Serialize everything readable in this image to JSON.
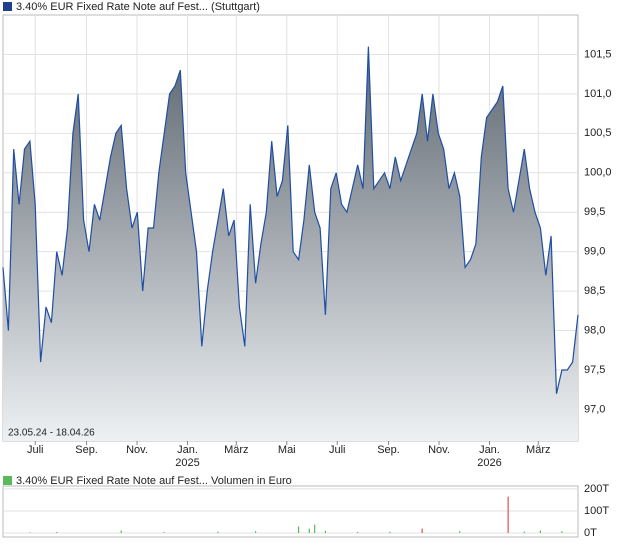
{
  "chart_data": [
    {
      "type": "line",
      "title": "3.40% EUR Fixed Rate Note auf Fest... (Stuttgart)",
      "date_range": "23.05.24 - 18.04.26",
      "xlim": [
        "2024-05-23",
        "2026-04-18"
      ],
      "xticks": [
        {
          "value": "2024-07-01",
          "label": "Juli"
        },
        {
          "value": "2024-09-01",
          "label": "Sep."
        },
        {
          "value": "2024-11-01",
          "label": "Nov."
        },
        {
          "value": "2025-01-01",
          "label": "Jan.",
          "year": "2025"
        },
        {
          "value": "2025-03-01",
          "label": "März"
        },
        {
          "value": "2025-05-01",
          "label": "Mai"
        },
        {
          "value": "2025-07-01",
          "label": "Juli"
        },
        {
          "value": "2025-09-01",
          "label": "Sep."
        },
        {
          "value": "2025-11-01",
          "label": "Nov."
        },
        {
          "value": "2026-01-01",
          "label": "Jan.",
          "year": "2026"
        },
        {
          "value": "2026-03-01",
          "label": "März"
        }
      ],
      "ylim": [
        96.6,
        102.0
      ],
      "yticks": [
        {
          "value": 97.0,
          "label": "97,0"
        },
        {
          "value": 97.5,
          "label": "97,5"
        },
        {
          "value": 98.0,
          "label": "98,0"
        },
        {
          "value": 98.5,
          "label": "98,5"
        },
        {
          "value": 99.0,
          "label": "99,0"
        },
        {
          "value": 99.5,
          "label": "99,5"
        },
        {
          "value": 100.0,
          "label": "100,0"
        },
        {
          "value": 100.5,
          "label": "100,5"
        },
        {
          "value": 101.0,
          "label": "101,0"
        },
        {
          "value": 101.5,
          "label": "101,5"
        }
      ],
      "grid": true,
      "color": "#1f4ea3",
      "fill_top": "#5d6670",
      "fill_bottom": "#eef1f3",
      "legend_color": "#1f3f8f",
      "values": [
        98.8,
        98.0,
        100.3,
        99.6,
        100.3,
        100.4,
        99.6,
        97.6,
        98.3,
        98.1,
        99.0,
        98.7,
        99.3,
        100.5,
        101.0,
        99.4,
        99.0,
        99.6,
        99.4,
        99.8,
        100.2,
        100.5,
        100.6,
        99.8,
        99.3,
        99.5,
        98.5,
        99.3,
        99.3,
        100.0,
        100.5,
        101.0,
        101.1,
        101.3,
        100.0,
        99.5,
        99.0,
        97.8,
        98.5,
        99.0,
        99.4,
        99.8,
        99.2,
        99.4,
        98.3,
        97.8,
        99.6,
        98.6,
        99.1,
        99.5,
        100.4,
        99.7,
        99.9,
        100.6,
        99.0,
        98.9,
        99.4,
        100.1,
        99.5,
        99.3,
        98.2,
        99.8,
        100.0,
        99.6,
        99.5,
        99.8,
        100.1,
        99.8,
        101.6,
        99.8,
        99.9,
        100.0,
        99.8,
        100.2,
        99.9,
        100.1,
        100.3,
        100.5,
        101.0,
        100.4,
        101.0,
        100.5,
        100.3,
        99.8,
        100.0,
        99.7,
        98.8,
        98.9,
        99.1,
        100.2,
        100.7,
        100.8,
        100.9,
        101.1,
        99.8,
        99.5,
        99.9,
        100.3,
        99.8,
        99.5,
        99.3,
        98.7,
        99.2,
        97.2,
        97.5,
        97.5,
        97.6,
        98.2
      ]
    },
    {
      "type": "bar",
      "title": "3.40% EUR Fixed Rate Note auf Fest... Volumen in Euro",
      "legend_color": "#5cb85c",
      "ylim": [
        -18000,
        213000
      ],
      "yticks": [
        {
          "value": 0,
          "label": "0T"
        },
        {
          "value": 100000,
          "label": "100T"
        },
        {
          "value": 200000,
          "label": "200T"
        }
      ],
      "grid": true,
      "values": [
        0,
        0,
        0,
        0,
        0,
        3000,
        0,
        0,
        0,
        0,
        5000,
        0,
        0,
        0,
        0,
        0,
        0,
        0,
        0,
        0,
        0,
        0,
        12000,
        0,
        0,
        0,
        0,
        0,
        0,
        0,
        4000,
        0,
        0,
        0,
        0,
        0,
        0,
        0,
        0,
        0,
        6000,
        0,
        0,
        0,
        0,
        0,
        0,
        8000,
        0,
        0,
        0,
        0,
        0,
        0,
        0,
        30000,
        0,
        20000,
        38000,
        0,
        10000,
        0,
        0,
        0,
        0,
        0,
        5000,
        0,
        0,
        0,
        0,
        0,
        6000,
        0,
        0,
        0,
        0,
        0,
        20000,
        0,
        0,
        0,
        0,
        0,
        0,
        8000,
        0,
        0,
        0,
        0,
        0,
        0,
        0,
        0,
        165000,
        0,
        0,
        6000,
        0,
        0,
        12000,
        0,
        0,
        0,
        8000,
        0,
        0,
        0
      ],
      "colors": [
        "#5cb85c",
        "#5cb85c",
        "#5cb85c",
        "#5cb85c",
        "#5cb85c",
        "#5cb85c",
        "#5cb85c",
        "#5cb85c",
        "#5cb85c",
        "#5cb85c",
        "#5cb85c",
        "#5cb85c",
        "#5cb85c",
        "#5cb85c",
        "#5cb85c",
        "#5cb85c",
        "#5cb85c",
        "#5cb85c",
        "#5cb85c",
        "#5cb85c",
        "#5cb85c",
        "#5cb85c",
        "#5cb85c",
        "#5cb85c",
        "#5cb85c",
        "#5cb85c",
        "#5cb85c",
        "#5cb85c",
        "#5cb85c",
        "#5cb85c",
        "#5cb85c",
        "#5cb85c",
        "#5cb85c",
        "#5cb85c",
        "#5cb85c",
        "#5cb85c",
        "#5cb85c",
        "#5cb85c",
        "#5cb85c",
        "#5cb85c",
        "#5cb85c",
        "#5cb85c",
        "#5cb85c",
        "#5cb85c",
        "#5cb85c",
        "#5cb85c",
        "#5cb85c",
        "#5cb85c",
        "#5cb85c",
        "#5cb85c",
        "#5cb85c",
        "#5cb85c",
        "#5cb85c",
        "#5cb85c",
        "#5cb85c",
        "#5cb85c",
        "#5cb85c",
        "#5cb85c",
        "#5cb85c",
        "#5cb85c",
        "#5cb85c",
        "#5cb85c",
        "#5cb85c",
        "#5cb85c",
        "#5cb85c",
        "#5cb85c",
        "#5cb85c",
        "#5cb85c",
        "#5cb85c",
        "#5cb85c",
        "#5cb85c",
        "#5cb85c",
        "#5cb85c",
        "#5cb85c",
        "#5cb85c",
        "#5cb85c",
        "#5cb85c",
        "#5cb85c",
        "#d9534f",
        "#5cb85c",
        "#5cb85c",
        "#5cb85c",
        "#5cb85c",
        "#5cb85c",
        "#5cb85c",
        "#5cb85c",
        "#5cb85c",
        "#5cb85c",
        "#5cb85c",
        "#5cb85c",
        "#5cb85c",
        "#5cb85c",
        "#5cb85c",
        "#5cb85c",
        "#d9534f",
        "#5cb85c",
        "#5cb85c",
        "#5cb85c",
        "#5cb85c",
        "#5cb85c",
        "#5cb85c",
        "#5cb85c",
        "#5cb85c",
        "#5cb85c",
        "#5cb85c",
        "#5cb85c",
        "#5cb85c",
        "#5cb85c"
      ]
    }
  ]
}
